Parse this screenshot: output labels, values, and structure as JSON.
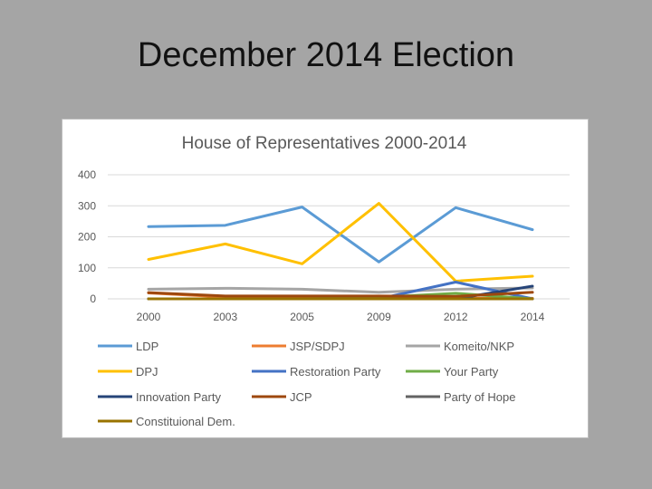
{
  "slide": {
    "title": "December 2014 Election"
  },
  "chart_data": {
    "type": "line",
    "title": "House of Representatives 2000-2014",
    "xlabel": "",
    "ylabel": "",
    "ylim": [
      0,
      400
    ],
    "yticks": [
      0,
      100,
      200,
      300,
      400
    ],
    "grid": true,
    "legend_position": "bottom",
    "categories": [
      "2000",
      "2003",
      "2005",
      "2009",
      "2012",
      "2014"
    ],
    "series": [
      {
        "name": "LDP",
        "color": "#5b9bd5",
        "values": [
          233,
          237,
          296,
          119,
          294,
          223
        ]
      },
      {
        "name": "JSP/SDPJ",
        "color": "#ed7d31",
        "values": [
          19,
          6,
          7,
          7,
          2,
          2
        ]
      },
      {
        "name": "Komeito/NKP",
        "color": "#a5a5a5",
        "values": [
          31,
          34,
          31,
          21,
          31,
          35
        ]
      },
      {
        "name": "DPJ",
        "color": "#ffc000",
        "values": [
          127,
          177,
          113,
          308,
          57,
          73
        ]
      },
      {
        "name": "Restoration Party",
        "color": "#4472c4",
        "values": [
          0,
          0,
          0,
          0,
          54,
          0
        ]
      },
      {
        "name": "Your Party",
        "color": "#70ad47",
        "values": [
          0,
          0,
          0,
          5,
          18,
          0
        ]
      },
      {
        "name": "Innovation Party",
        "color": "#264478",
        "values": [
          0,
          0,
          0,
          0,
          0,
          41
        ]
      },
      {
        "name": "JCP",
        "color": "#9e480e",
        "values": [
          20,
          9,
          9,
          9,
          8,
          21
        ]
      },
      {
        "name": "Party of Hope",
        "color": "#636363",
        "values": [
          0,
          0,
          0,
          0,
          0,
          0
        ]
      },
      {
        "name": "Constituional Dem.",
        "color": "#997300",
        "values": [
          0,
          0,
          0,
          0,
          0,
          0
        ]
      }
    ]
  }
}
